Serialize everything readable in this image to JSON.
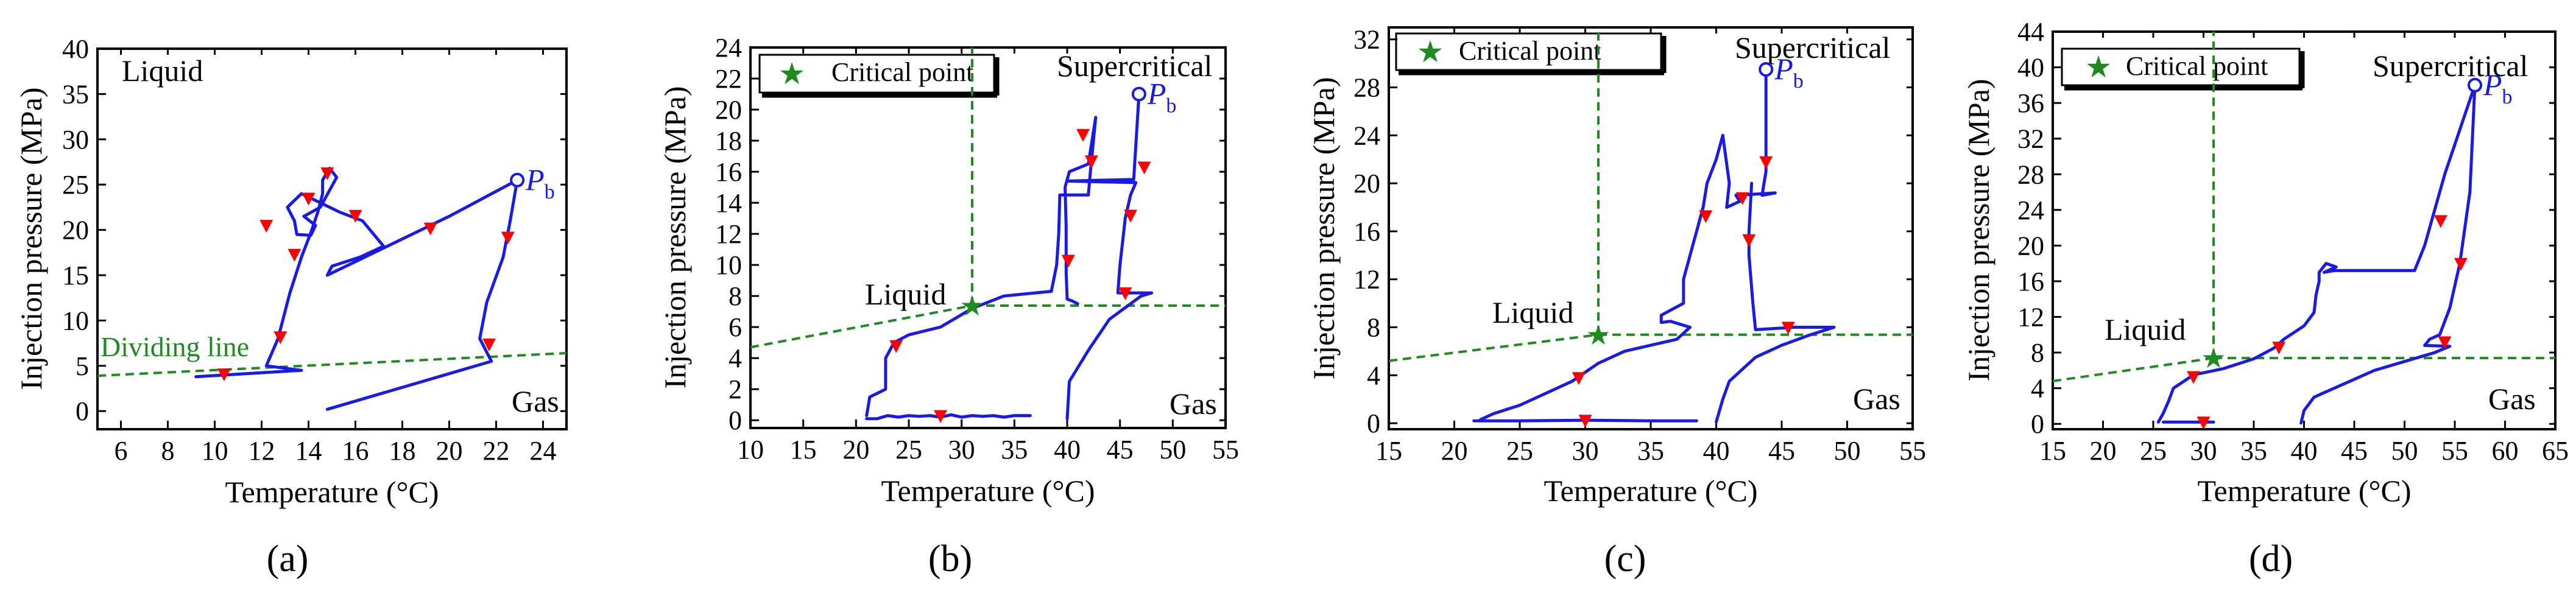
{
  "figure": {
    "panels": [
      "(a)",
      "(b)",
      "(c)",
      "(d)"
    ]
  },
  "colors": {
    "path": "#1a1ae6",
    "arrow": "#ff0000",
    "boundary": "#1f8a1f",
    "axis": "#000000",
    "background": "#ffffff"
  },
  "chart_data": [
    {
      "type": "line",
      "panel_label": "(a)",
      "xlabel": "Temperature (°C)",
      "ylabel": "Injection pressure (MPa)",
      "xlim": [
        5,
        25
      ],
      "ylim": [
        -2,
        40
      ],
      "xticks": [
        6,
        8,
        10,
        12,
        14,
        16,
        18,
        20,
        22,
        24
      ],
      "yticks": [
        0,
        5,
        10,
        15,
        20,
        25,
        30,
        35,
        40
      ],
      "region_labels": {
        "top_left": "Liquid",
        "bottom_right": "Gas",
        "boundary": "Dividing line"
      },
      "boundary_line": {
        "x": [
          5,
          25
        ],
        "y": [
          3.9,
          6.4
        ]
      },
      "endpoint": {
        "label": "P",
        "subscript": "b",
        "x": 22.9,
        "y": 25.5
      },
      "series": [
        {
          "name": "path",
          "points": [
            [
              14.8,
              0.2
            ],
            [
              21.8,
              5.5
            ],
            [
              21.3,
              8
            ],
            [
              21.6,
              12
            ],
            [
              22.3,
              17
            ],
            [
              22.6,
              21
            ],
            [
              22.9,
              25.5
            ],
            [
              20,
              21.5
            ],
            [
              18,
              19
            ],
            [
              16,
              16.5
            ],
            [
              14.8,
              15
            ],
            [
              15,
              16
            ],
            [
              16.2,
              17
            ],
            [
              17.2,
              18.2
            ],
            [
              16.3,
              21
            ],
            [
              15.3,
              22
            ],
            [
              14.5,
              23
            ],
            [
              13.7,
              24
            ],
            [
              13.1,
              22.5
            ],
            [
              13.4,
              21
            ],
            [
              13.5,
              19.5
            ],
            [
              14.1,
              19.4
            ],
            [
              14.3,
              20.5
            ],
            [
              13.8,
              21.5
            ],
            [
              14.5,
              22.5
            ],
            [
              15.2,
              25.8
            ],
            [
              14.9,
              26.8
            ],
            [
              14.6,
              25.5
            ],
            [
              14.6,
              24
            ],
            [
              14.4,
              22
            ],
            [
              14.1,
              19.7
            ],
            [
              13.7,
              17
            ],
            [
              13.2,
              13
            ],
            [
              12.7,
              8
            ],
            [
              12.2,
              5
            ],
            [
              13.7,
              4.5
            ],
            [
              9.2,
              3.8
            ]
          ]
        }
      ],
      "arrows": [
        [
          14.8,
          26.3
        ],
        [
          12.2,
          20.5
        ],
        [
          14.0,
          23.5
        ],
        [
          16.0,
          21.6
        ],
        [
          19.2,
          20.2
        ],
        [
          13.4,
          17.3
        ],
        [
          12.8,
          8.2
        ],
        [
          21.7,
          7.4
        ],
        [
          22.5,
          19.2
        ],
        [
          10.4,
          4.1
        ]
      ]
    },
    {
      "type": "line",
      "panel_label": "(b)",
      "xlabel": "Temperature (°C)",
      "ylabel": "Injection pressure (MPa)",
      "xlim": [
        10,
        55
      ],
      "ylim": [
        -0.5,
        24
      ],
      "xticks": [
        10,
        15,
        20,
        25,
        30,
        35,
        40,
        45,
        50,
        55
      ],
      "yticks": [
        0,
        2,
        4,
        6,
        8,
        10,
        12,
        14,
        16,
        18,
        20,
        22,
        24
      ],
      "legend": "Critical point",
      "critical_point": {
        "x": 31,
        "y": 7.38
      },
      "region_labels": {
        "liquid": "Liquid",
        "supercritical": "Supercritical",
        "gas": "Gas"
      },
      "boundary_line": {
        "x": [
          10,
          55
        ],
        "y": [
          4.7,
          7.38
        ]
      },
      "endpoint": {
        "label": "P",
        "subscript": "b",
        "x": 46.8,
        "y": 21
      },
      "series": [
        {
          "name": "path",
          "points": [
            [
              21,
              0.3
            ],
            [
              21.3,
              1.5
            ],
            [
              22.8,
              2
            ],
            [
              22.8,
              4
            ],
            [
              23.6,
              5
            ],
            [
              25,
              5.5
            ],
            [
              28,
              6
            ],
            [
              31,
              7.2
            ],
            [
              34,
              8
            ],
            [
              38.5,
              8.3
            ],
            [
              39,
              10
            ],
            [
              39.2,
              12
            ],
            [
              39.3,
              14.5
            ],
            [
              42,
              14.5
            ],
            [
              42.2,
              16
            ],
            [
              42.7,
              19.5
            ],
            [
              42,
              16.5
            ],
            [
              40.2,
              16
            ],
            [
              39.8,
              15
            ],
            [
              39.9,
              12.5
            ],
            [
              39.9,
              9.5
            ],
            [
              40,
              7.8
            ],
            [
              40.4,
              7.7
            ],
            [
              41,
              7.5
            ]
          ]
        },
        {
          "name": "path2",
          "points": [
            [
              40,
              0.1
            ],
            [
              40.2,
              2.5
            ],
            [
              42,
              4.5
            ],
            [
              44,
              6.5
            ],
            [
              47,
              8
            ],
            [
              48,
              8.2
            ],
            [
              44.8,
              8.2
            ],
            [
              45,
              10
            ],
            [
              45.5,
              13
            ],
            [
              46,
              14.5
            ],
            [
              46.5,
              15.3
            ],
            [
              40,
              15.4
            ],
            [
              46.3,
              15.5
            ],
            [
              46.8,
              21
            ]
          ]
        },
        {
          "name": "path3",
          "points": [
            [
              21,
              0.1
            ],
            [
              22,
              0.1
            ],
            [
              23,
              0.3
            ],
            [
              24,
              0.2
            ],
            [
              25,
              0.3
            ],
            [
              26,
              0.25
            ],
            [
              27,
              0.3
            ],
            [
              28,
              0.2
            ],
            [
              29,
              0.35
            ],
            [
              30,
              0.2
            ],
            [
              31,
              0.3
            ],
            [
              32,
              0.25
            ],
            [
              33,
              0.3
            ],
            [
              34,
              0.2
            ],
            [
              35,
              0.3
            ],
            [
              36.5,
              0.3
            ]
          ]
        }
      ],
      "arrows": [
        [
          23.8,
          4.8
        ],
        [
          28,
          0.3
        ],
        [
          40.1,
          10.3
        ],
        [
          42.3,
          16.7
        ],
        [
          41.5,
          18.4
        ],
        [
          47.3,
          16.3
        ],
        [
          46,
          13.2
        ],
        [
          45.5,
          8.2
        ]
      ]
    },
    {
      "type": "line",
      "panel_label": "(c)",
      "xlabel": "Temperature (°C)",
      "ylabel": "Injection pressure (MPa)",
      "xlim": [
        15,
        55
      ],
      "ylim": [
        -0.5,
        33
      ],
      "xticks": [
        15,
        20,
        25,
        30,
        35,
        40,
        45,
        50,
        55
      ],
      "yticks": [
        0,
        4,
        8,
        12,
        16,
        20,
        24,
        28,
        32
      ],
      "legend": "Critical point",
      "critical_point": {
        "x": 31,
        "y": 7.38
      },
      "region_labels": {
        "liquid": "Liquid",
        "supercritical": "Supercritical",
        "gas": "Gas"
      },
      "boundary_line": {
        "x": [
          15,
          55
        ],
        "y": [
          5.2,
          7.38
        ]
      },
      "endpoint": {
        "label": "P",
        "subscript": "b",
        "x": 43.8,
        "y": 29.5
      },
      "series": [
        {
          "name": "path",
          "points": [
            [
              22,
              0.3
            ],
            [
              23,
              0.8
            ],
            [
              25,
              1.5
            ],
            [
              27,
              2.5
            ],
            [
              29,
              3.5
            ],
            [
              31,
              5
            ],
            [
              33,
              6
            ],
            [
              35,
              6.5
            ],
            [
              37,
              7
            ],
            [
              38,
              8
            ],
            [
              36.5,
              8.5
            ],
            [
              35.8,
              8.4
            ],
            [
              35.8,
              9
            ],
            [
              37.5,
              10
            ],
            [
              37.5,
              12
            ],
            [
              38.5,
              16
            ],
            [
              39,
              18
            ],
            [
              39.3,
              20
            ],
            [
              40,
              22
            ],
            [
              40.5,
              24
            ],
            [
              41,
              20
            ],
            [
              40.8,
              18
            ],
            [
              41.8,
              18.5
            ],
            [
              41.5,
              19
            ],
            [
              44.5,
              19.2
            ],
            [
              43.5,
              19
            ],
            [
              43.8,
              21
            ],
            [
              43.8,
              29.5
            ]
          ]
        },
        {
          "name": "path2",
          "points": [
            [
              40,
              0.1
            ],
            [
              40.5,
              2
            ],
            [
              41,
              3.5
            ],
            [
              43,
              5.5
            ],
            [
              45,
              6.5
            ],
            [
              47,
              7.3
            ],
            [
              49,
              8
            ],
            [
              46,
              8
            ],
            [
              43,
              7.8
            ],
            [
              42.8,
              10
            ],
            [
              42.5,
              14
            ],
            [
              42.5,
              16
            ],
            [
              42.7,
              20
            ]
          ]
        },
        {
          "name": "path3",
          "points": [
            [
              21.5,
              0.2
            ],
            [
              25,
              0.2
            ],
            [
              30,
              0.25
            ],
            [
              35,
              0.2
            ],
            [
              38.5,
              0.2
            ]
          ]
        }
      ],
      "arrows": [
        [
          29.5,
          3.8
        ],
        [
          30,
          0.25
        ],
        [
          39.2,
          17.3
        ],
        [
          42.5,
          15.3
        ],
        [
          42,
          18.8
        ],
        [
          43.8,
          21.8
        ],
        [
          45.5,
          8
        ]
      ]
    },
    {
      "type": "line",
      "panel_label": "(d)",
      "xlabel": "Temperature (°C)",
      "ylabel": "Injection pressure (MPa)",
      "xlim": [
        15,
        65
      ],
      "ylim": [
        -0.6,
        44
      ],
      "xticks": [
        15,
        20,
        25,
        30,
        35,
        40,
        45,
        50,
        55,
        60,
        65
      ],
      "yticks": [
        0,
        4,
        8,
        12,
        16,
        20,
        24,
        28,
        32,
        36,
        40,
        44
      ],
      "legend": "Critical point",
      "critical_point": {
        "x": 31,
        "y": 7.38
      },
      "region_labels": {
        "liquid": "Liquid",
        "supercritical": "Supercritical",
        "gas": "Gas"
      },
      "boundary_line": {
        "x": [
          15,
          65
        ],
        "y": [
          4.8,
          7.38
        ]
      },
      "endpoint": {
        "label": "P",
        "subscript": "b",
        "x": 57,
        "y": 38
      },
      "series": [
        {
          "name": "path",
          "points": [
            [
              25.5,
              0.2
            ],
            [
              26,
              1.2
            ],
            [
              26.5,
              2.5
            ],
            [
              27,
              4
            ],
            [
              29,
              5.5
            ],
            [
              32,
              6.2
            ],
            [
              35,
              7.3
            ],
            [
              37,
              8.5
            ],
            [
              38,
              9.5
            ],
            [
              40,
              11
            ],
            [
              41,
              12.5
            ],
            [
              41.2,
              14.5
            ],
            [
              41.5,
              16
            ],
            [
              41.5,
              17
            ],
            [
              42.2,
              18
            ],
            [
              43.2,
              17.6
            ],
            [
              42,
              17
            ],
            [
              43,
              17.2
            ],
            [
              51,
              17.2
            ],
            [
              52,
              20
            ],
            [
              54,
              28
            ],
            [
              57,
              38
            ]
          ]
        },
        {
          "name": "path2",
          "points": [
            [
              39.7,
              0.1
            ],
            [
              40,
              1.5
            ],
            [
              41,
              3
            ],
            [
              44,
              4.5
            ],
            [
              47,
              6
            ],
            [
              50,
              7
            ],
            [
              53,
              8
            ],
            [
              54.5,
              8.7
            ],
            [
              52,
              8.8
            ],
            [
              52.5,
              9.5
            ],
            [
              53.5,
              10
            ],
            [
              54.5,
              13
            ],
            [
              55.5,
              18
            ],
            [
              56.5,
              26
            ],
            [
              57,
              38
            ]
          ]
        },
        {
          "name": "path3",
          "points": [
            [
              26,
              0.2
            ],
            [
              31,
              0.2
            ]
          ]
        }
      ],
      "arrows": [
        [
          29,
          5.3
        ],
        [
          37.5,
          8.6
        ],
        [
          53.6,
          22.8
        ],
        [
          55.6,
          18
        ],
        [
          54,
          9.2
        ],
        [
          30,
          0.2
        ]
      ]
    }
  ]
}
